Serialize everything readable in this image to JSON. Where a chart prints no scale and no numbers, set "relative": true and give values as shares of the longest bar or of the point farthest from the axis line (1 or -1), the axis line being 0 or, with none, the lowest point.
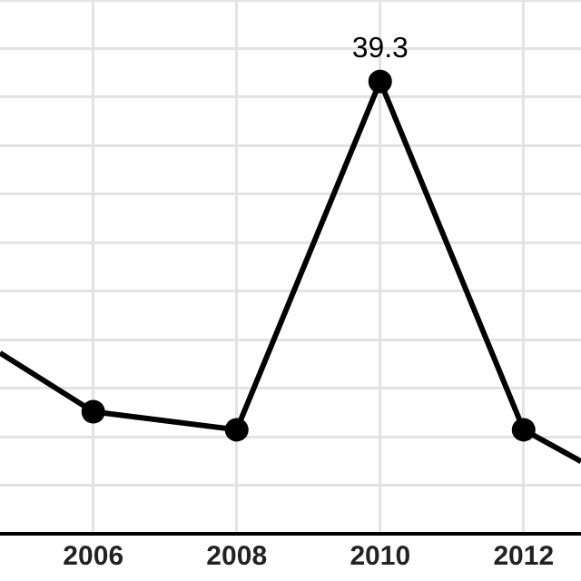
{
  "chart_data": {
    "type": "line",
    "relative": true,
    "x": [
      2004.7,
      2006,
      2008,
      2010,
      2012,
      2012.8
    ],
    "xlim": [
      2004.7,
      2012.8
    ],
    "xticks": [
      2006,
      2008,
      2010,
      2012
    ],
    "series": [
      {
        "color": "#000000",
        "values": [
          0.4,
          0.27,
          0.23,
          1,
          0.23,
          0.16
        ]
      }
    ],
    "annotations": [
      {
        "text": "39.3",
        "x": 2010,
        "y": 1
      }
    ],
    "grid": true,
    "marker": "circle",
    "line_style": "solid"
  }
}
